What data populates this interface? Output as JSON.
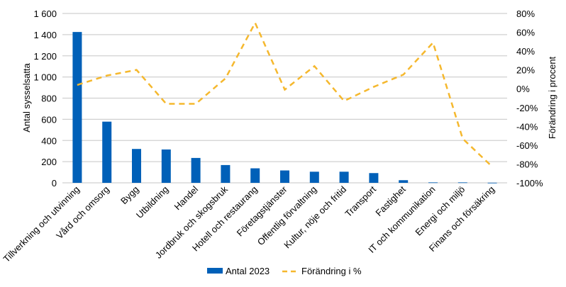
{
  "chart_data": {
    "type": "bar+line",
    "categories": [
      "Tillverkning och utvinning",
      "Vård och omsorg",
      "Bygg",
      "Utbildning",
      "Handel",
      "Jordbruk och skogsbruk",
      "Hotell och restaurang",
      "Företagstjänster",
      "Offentlig förvaltning",
      "Kultur, nöje och fritid",
      "Transport",
      "Fastighet",
      "IT och kommunikation",
      "Energi och miljö",
      "Finans och försäkring"
    ],
    "series": [
      {
        "name": "Antal 2023",
        "type": "bar",
        "axis": "left",
        "color": "#0060B8",
        "values": [
          1425,
          578,
          320,
          315,
          235,
          168,
          137,
          117,
          105,
          105,
          92,
          25,
          4,
          4,
          1
        ]
      },
      {
        "name": "Förändring i %",
        "type": "line",
        "style": "dashed",
        "axis": "right",
        "color": "#F5B82E",
        "values": [
          4,
          14,
          20,
          -16,
          -16,
          11,
          70,
          -1,
          24,
          -13,
          2,
          15,
          49,
          -53,
          -83
        ]
      }
    ],
    "ylabel": "Antal sysselsatta",
    "y2label": "Förändring i procent",
    "ylim": [
      0,
      1600
    ],
    "y2lim": [
      -100,
      80
    ],
    "yticks": [
      "0",
      "200",
      "400",
      "600",
      "800",
      "1 000",
      "1 200",
      "1 400",
      "1 600"
    ],
    "y2ticks": [
      "-100%",
      "-80%",
      "-60%",
      "-40%",
      "-20%",
      "0%",
      "20%",
      "40%",
      "60%",
      "80%"
    ],
    "grid": true,
    "legend": "bottom"
  }
}
